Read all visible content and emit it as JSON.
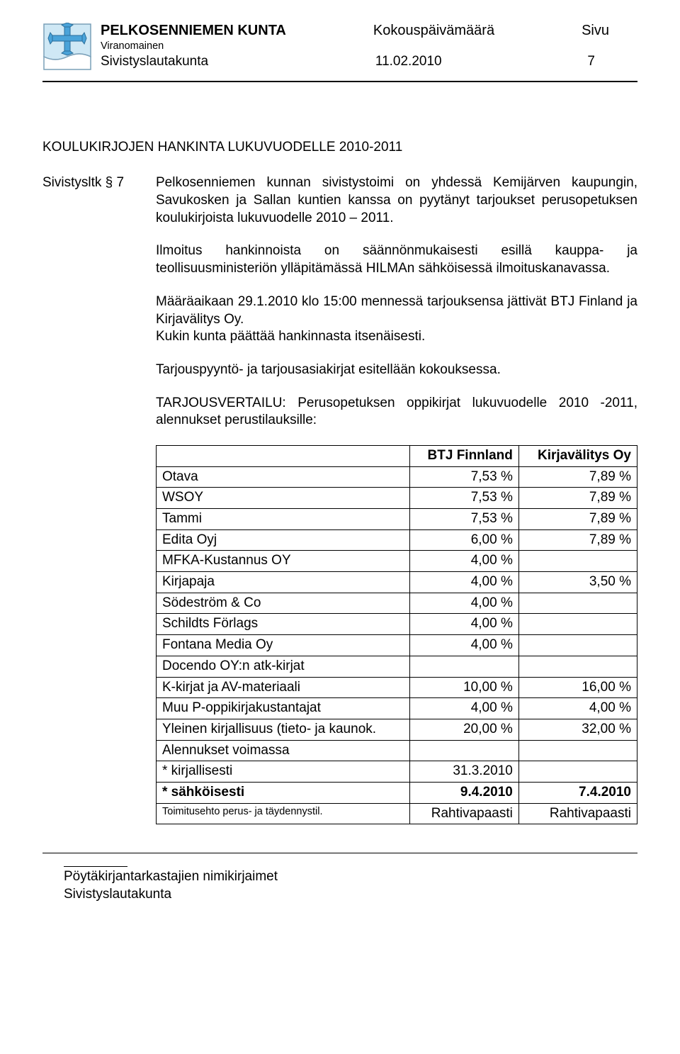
{
  "header": {
    "municipality": "PELKOSENNIEMEN KUNTA",
    "meeting_date_label": "Kokouspäivämäärä",
    "page_label": "Sivu",
    "authority": "Viranomainen",
    "board": "Sivistyslautakunta",
    "date": "11.02.2010",
    "page_number": "7"
  },
  "title": "KOULUKIRJOJEN HANKINTA LUKUVUODELLE 2010-2011",
  "left_label": "Sivistysltk § 7",
  "paragraphs": {
    "p1": "Pelkosenniemen kunnan sivistystoimi on yhdessä Kemijärven kaupungin, Savukosken ja Sallan kuntien kanssa on pyytänyt tarjoukset perusopetuksen koulukirjoista lukuvuodelle 2010 – 2011.",
    "p2": "Ilmoitus hankinnoista on säännönmukaisesti esillä kauppa- ja teollisuusministeriön ylläpitämässä HILMAn sähköisessä ilmoituskanavassa.",
    "p3": "Määräaikaan 29.1.2010 klo 15:00 mennessä tarjouksensa jättivät BTJ Finland ja Kirjavälitys Oy.",
    "p4": "Kukin kunta päättää hankinnasta itsenäisesti.",
    "p5": "Tarjouspyyntö- ja tarjousasiakirjat esitellään kokouksessa.",
    "p6": "TARJOUSVERTAILU: Perusopetuksen oppikirjat lukuvuodelle 2010 -2011, alennukset perustilauksille:"
  },
  "table": {
    "columns": [
      "",
      "BTJ Finnland",
      "Kirjavälitys Oy"
    ],
    "rows": [
      [
        "Otava",
        "7,53 %",
        "7,89 %"
      ],
      [
        "WSOY",
        "7,53 %",
        "7,89 %"
      ],
      [
        "Tammi",
        "7,53 %",
        "7,89 %"
      ],
      [
        "Edita Oyj",
        "6,00 %",
        "7,89 %"
      ],
      [
        "MFKA-Kustannus OY",
        "4,00 %",
        ""
      ],
      [
        "Kirjapaja",
        "4,00 %",
        "3,50 %"
      ],
      [
        "Södeström & Co",
        "4,00 %",
        ""
      ],
      [
        "Schildts Förlags",
        "4,00 %",
        ""
      ],
      [
        "Fontana Media Oy",
        "4,00 %",
        ""
      ],
      [
        "Docendo OY:n atk-kirjat",
        "",
        ""
      ],
      [
        "K-kirjat ja AV-materiaali",
        "10,00 %",
        "16,00 %"
      ],
      [
        "Muu P-oppikirjakustantajat",
        "4,00 %",
        "4,00 %"
      ],
      [
        "Yleinen kirjallisuus (tieto- ja kaunok.",
        "20,00 %",
        "32,00 %"
      ],
      [
        "Alennukset voimassa",
        "",
        ""
      ],
      [
        "* kirjallisesti",
        "31.3.2010",
        ""
      ],
      [
        "* sähköisesti",
        "9.4.2010",
        "7.4.2010"
      ]
    ],
    "note_label": "Toimitusehto perus- ja täydennystil.",
    "note_c2": "Rahtivapaasti",
    "note_c3": "Rahtivapaasti",
    "bold_row_index": 15
  },
  "footer": {
    "line1": "Pöytäkirjantarkastajien nimikirjaimet",
    "line2": "Sivistyslautakunta"
  },
  "style": {
    "logo": {
      "sky": "#cfe8f5",
      "cloud": "#ffffff",
      "cross": "#4aa3d9",
      "border": "#7aa0b8"
    }
  }
}
